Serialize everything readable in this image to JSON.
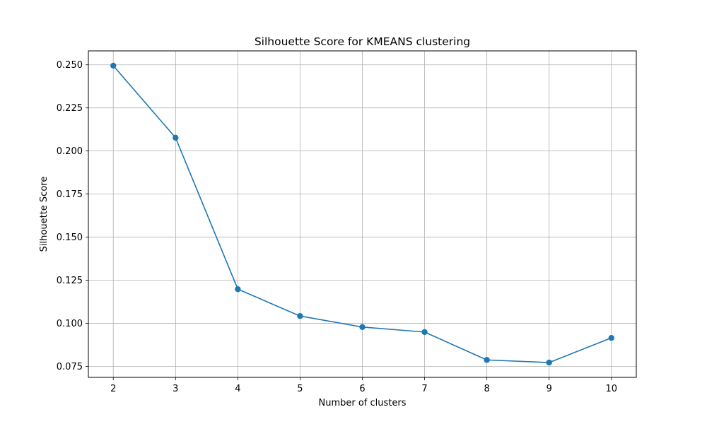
{
  "chart_data": {
    "type": "line",
    "title": "Silhouette Score for KMEANS clustering",
    "xlabel": "Number of clusters",
    "ylabel": "Silhouette Score",
    "x": [
      2,
      3,
      4,
      5,
      6,
      7,
      8,
      9,
      10
    ],
    "series": [
      {
        "values": [
          0.2495,
          0.2077,
          0.1198,
          0.1042,
          0.0978,
          0.0949,
          0.0787,
          0.0772,
          0.0915
        ],
        "color": "#1f77b4",
        "marker": "circle"
      }
    ],
    "xlim": [
      1.6,
      10.4
    ],
    "ylim": [
      0.0686,
      0.2581
    ],
    "xticks": [
      2,
      3,
      4,
      5,
      6,
      7,
      8,
      9,
      10
    ],
    "xtick_labels": [
      "2",
      "3",
      "4",
      "5",
      "6",
      "7",
      "8",
      "9",
      "10"
    ],
    "yticks": [
      0.075,
      0.1,
      0.125,
      0.15,
      0.175,
      0.2,
      0.225,
      0.25
    ],
    "ytick_labels": [
      "0.075",
      "0.100",
      "0.125",
      "0.150",
      "0.175",
      "0.200",
      "0.225",
      "0.250"
    ],
    "grid": true,
    "legend": "none",
    "colors": {
      "grid": "#b0b0b0",
      "axes": "#000000",
      "background": "#ffffff"
    }
  }
}
